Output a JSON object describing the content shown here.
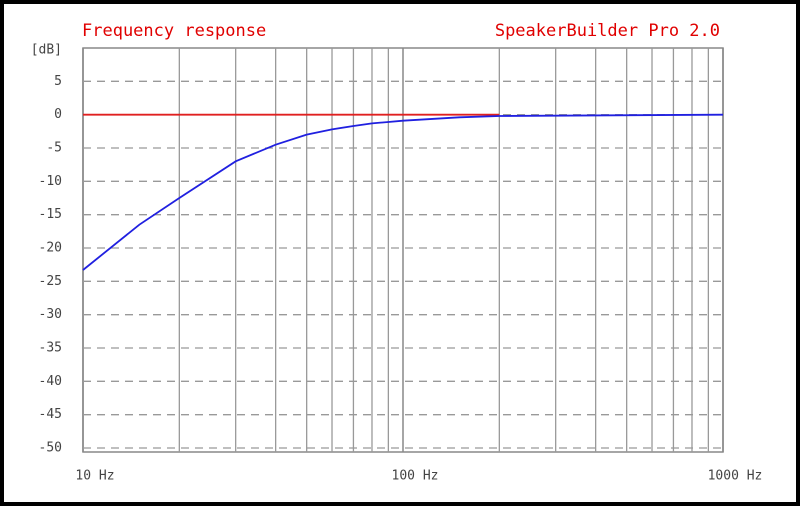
{
  "chart_data": {
    "type": "line",
    "title": "Frequency response",
    "subtitle": "SpeakerBuilder Pro 2.0",
    "y_label": "[dB]",
    "log_x": true,
    "xlim": [
      10,
      1000
    ],
    "xticks": [
      {
        "value": 10,
        "label": "10 Hz"
      },
      {
        "value": 100,
        "label": "100 Hz"
      },
      {
        "value": 1000,
        "label": "1000 Hz"
      }
    ],
    "xminor": [
      20,
      30,
      40,
      50,
      60,
      70,
      80,
      90,
      200,
      300,
      400,
      500,
      600,
      700,
      800,
      900
    ],
    "ylim": [
      -50,
      10
    ],
    "yticks": [
      5,
      0,
      -5,
      -10,
      -15,
      -20,
      -25,
      -30,
      -35,
      -40,
      -45,
      -50
    ],
    "grid": true,
    "series": [
      {
        "color": "#e02020",
        "x": [
          10,
          200
        ],
        "values": [
          0,
          0
        ]
      },
      {
        "color": "#2020e0",
        "x": [
          10,
          15,
          20,
          30,
          40,
          50,
          60,
          70,
          80,
          90,
          100,
          150,
          200,
          1000
        ],
        "values": [
          -23.3,
          -16.5,
          -12.5,
          -7,
          -4.5,
          -3,
          -2.2,
          -1.7,
          -1.3,
          -1.1,
          -0.9,
          -0.4,
          -0.2,
          0
        ]
      }
    ]
  }
}
